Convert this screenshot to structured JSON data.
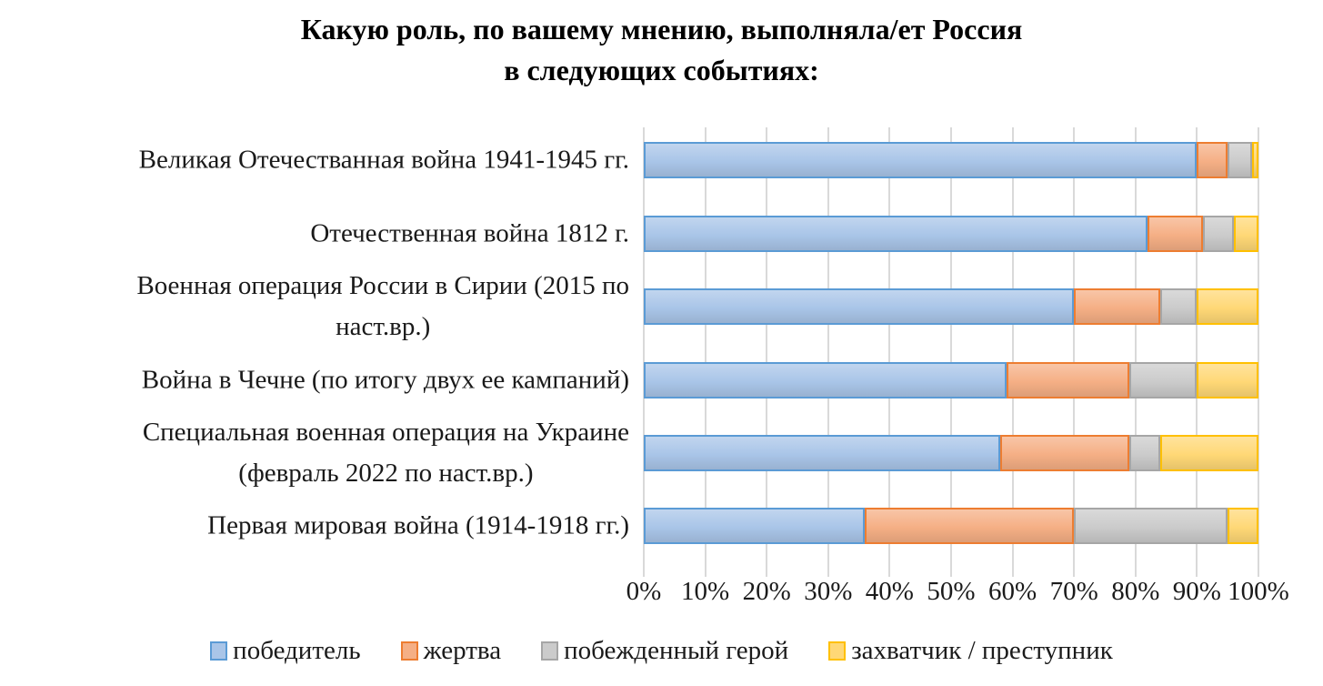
{
  "title": {
    "text": "Какую роль, по вашему мнению, выполняла/ет Россия\nв следующих событиях:"
  },
  "chart_data": {
    "type": "bar",
    "variant": "horizontal-stacked",
    "unit": "%",
    "title": "Какую роль, по вашему мнению, выполняла/ет Россия в следующих событиях:",
    "grid": {
      "vertical": true,
      "color": "#D9D9D9"
    },
    "legend_position": "bottom",
    "x_axis": {
      "min": 0,
      "max": 100,
      "step": 10,
      "ticks": [
        "0%",
        "10%",
        "20%",
        "30%",
        "40%",
        "50%",
        "60%",
        "70%",
        "80%",
        "90%",
        "100%"
      ]
    },
    "categories": [
      {
        "label": "Великая Отечестванная война 1941-1945 гг."
      },
      {
        "label": "Отечественная война 1812 г."
      },
      {
        "label": "Военная операция России в Сирии (2015 по\nнаст.вр.)"
      },
      {
        "label": "Война в Чечне (по итогу двух ее кампаний)"
      },
      {
        "label": "Специальная военная операция на Украине\n(февраль 2022 по наст.вр.)"
      },
      {
        "label": "Первая мировая война (1914-1918 гг.)"
      }
    ],
    "series": [
      {
        "name": "победитель",
        "color": "#5B9BD5",
        "fill": "#A9C5E8",
        "values": [
          90,
          82,
          70,
          59,
          58,
          36
        ]
      },
      {
        "name": "жертва",
        "color": "#ED7D31",
        "fill": "#F5AF85",
        "values": [
          5,
          9,
          14,
          20,
          21,
          34
        ]
      },
      {
        "name": "побежденный герой",
        "color": "#A6A6A6",
        "fill": "#CBCBCB",
        "values": [
          4,
          5,
          6,
          11,
          5,
          25
        ]
      },
      {
        "name": "захватчик / преступник",
        "color": "#FFC000",
        "fill": "#FFD876",
        "values": [
          1,
          4,
          10,
          10,
          16,
          5
        ]
      }
    ]
  }
}
